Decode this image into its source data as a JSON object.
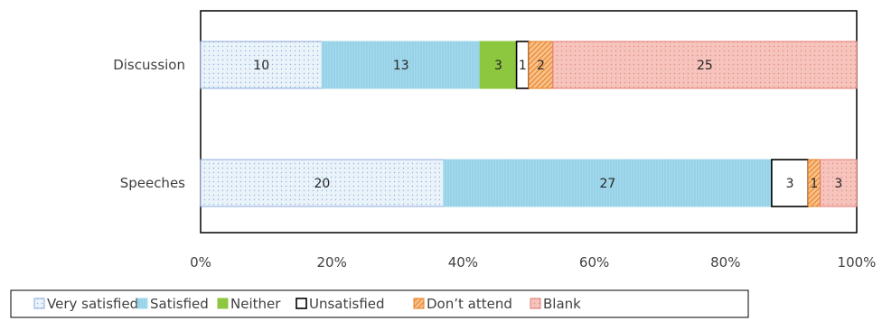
{
  "chart_data": {
    "type": "bar",
    "orientation": "horizontal",
    "stacked": "100%",
    "categories": [
      "Discussion",
      "Speeches"
    ],
    "series": [
      {
        "name": "Very satisfied",
        "values": [
          10,
          20
        ],
        "color": "#e8f1f8",
        "pattern": "dots",
        "border": "#8faadc"
      },
      {
        "name": "Satisfied",
        "values": [
          13,
          27
        ],
        "color": "#9dd6ea",
        "pattern": "vlines",
        "border": "#9dd6ea"
      },
      {
        "name": "Neither",
        "values": [
          3,
          0
        ],
        "color": "#8dc63f",
        "pattern": "solid",
        "border": "#8dc63f"
      },
      {
        "name": "Unsatisfied",
        "values": [
          1,
          3
        ],
        "color": "#ffffff",
        "pattern": "solid",
        "border": "#000000"
      },
      {
        "name": "Don’t attend",
        "values": [
          2,
          1
        ],
        "color": "#f4a460",
        "pattern": "diag",
        "border": "#e67e22"
      },
      {
        "name": "Blank",
        "values": [
          25,
          3
        ],
        "color": "#f4b8b0",
        "pattern": "dots",
        "border": "#e07b70"
      }
    ],
    "xlim": [
      0,
      1
    ],
    "xticks": [
      "0%",
      "20%",
      "40%",
      "60%",
      "80%",
      "100%"
    ],
    "legend": "bottom",
    "grid": false
  }
}
